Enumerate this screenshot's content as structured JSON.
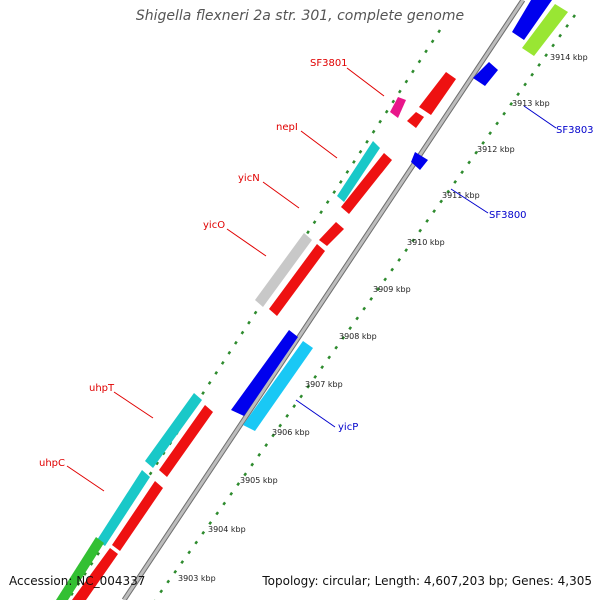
{
  "title": "Shigella flexneri 2a str. 301, complete genome",
  "footer": {
    "accession": "Accession: NC_004337",
    "topology": "Topology: circular; Length: 4,607,203 bp; Genes: 4,305"
  },
  "colors": {
    "backbone": "#a8a8a8",
    "ticks": "#2e8b2e",
    "label_red": "#e00000",
    "label_blue": "#0000cc"
  },
  "kbp_labels": [
    "3903 kbp",
    "3904 kbp",
    "3905 kbp",
    "3906 kbp",
    "3907 kbp",
    "3908 kbp",
    "3909 kbp",
    "3910 kbp",
    "3911 kbp",
    "3912 kbp",
    "3913 kbp",
    "3914 kbp"
  ],
  "gene_labels": {
    "sf3801": "SF3801",
    "nepi": "nepI",
    "yicn": "yicN",
    "yico": "yicO",
    "uhpt": "uhpT",
    "uhpc": "uhpC",
    "sf3803": "SF3803",
    "sf3800": "SF3800",
    "yicp": "yicP"
  }
}
